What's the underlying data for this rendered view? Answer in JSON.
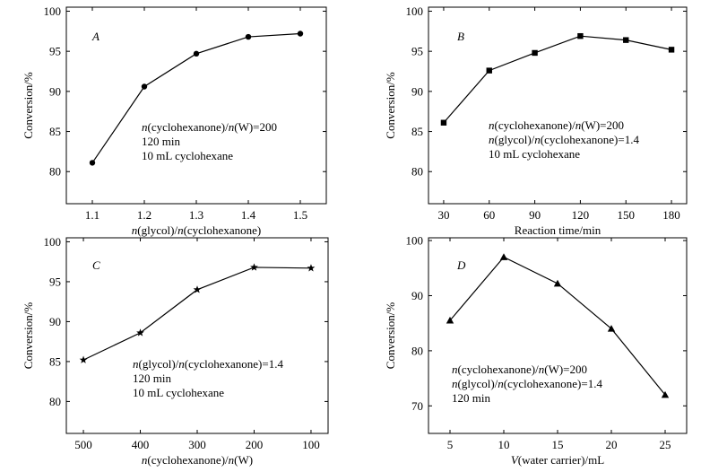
{
  "chart_data": [
    {
      "type": "line",
      "panel_label": "A",
      "marker": "circle",
      "xlabel_parts": [
        {
          "t": "n",
          "i": true
        },
        {
          "t": "(glycol)/",
          "i": false
        },
        {
          "t": "n",
          "i": true
        },
        {
          "t": "(cyclohexanone)",
          "i": false
        }
      ],
      "ylabel": "Conversion/%",
      "xlim": [
        1.05,
        1.55
      ],
      "ylim": [
        76,
        100.5
      ],
      "xticks": [
        1.1,
        1.2,
        1.3,
        1.4,
        1.5
      ],
      "xtick_labels": [
        "1.1",
        "1.2",
        "1.3",
        "1.4",
        "1.5"
      ],
      "yticks": [
        80,
        85,
        90,
        95,
        100
      ],
      "ytick_labels": [
        "80",
        "85",
        "90",
        "95",
        "100"
      ],
      "x": [
        1.1,
        1.2,
        1.3,
        1.4,
        1.5
      ],
      "y": [
        81.1,
        90.6,
        94.7,
        96.8,
        97.2
      ],
      "annotations": [
        [
          {
            "t": "n",
            "i": true
          },
          {
            "t": "(cyclohexanone)/",
            "i": false
          },
          {
            "t": "n",
            "i": true
          },
          {
            "t": "(W)=200",
            "i": false
          }
        ],
        [
          {
            "t": "120 min",
            "i": false
          }
        ],
        [
          {
            "t": "10 mL cyclohexane",
            "i": false
          }
        ]
      ]
    },
    {
      "type": "line",
      "panel_label": "B",
      "marker": "square",
      "xlabel_parts": [
        {
          "t": "Reaction time/min",
          "i": false
        }
      ],
      "ylabel": "Conversion/%",
      "xlim": [
        20,
        190
      ],
      "ylim": [
        76,
        100.5
      ],
      "xticks": [
        30,
        60,
        90,
        120,
        150,
        180
      ],
      "xtick_labels": [
        "30",
        "60",
        "90",
        "120",
        "150",
        "180"
      ],
      "yticks": [
        80,
        85,
        90,
        95,
        100
      ],
      "ytick_labels": [
        "80",
        "85",
        "90",
        "95",
        "100"
      ],
      "x": [
        30,
        60,
        90,
        120,
        150,
        180
      ],
      "y": [
        86.1,
        92.6,
        94.8,
        96.9,
        96.4,
        95.2
      ],
      "annotations": [
        [
          {
            "t": "n",
            "i": true
          },
          {
            "t": "(cyclohexanone)/",
            "i": false
          },
          {
            "t": "n",
            "i": true
          },
          {
            "t": "(W)=200",
            "i": false
          }
        ],
        [
          {
            "t": "n",
            "i": true
          },
          {
            "t": "(glycol)/",
            "i": false
          },
          {
            "t": "n",
            "i": true
          },
          {
            "t": "(cyclohexanone)=1.4",
            "i": false
          }
        ],
        [
          {
            "t": "10 mL cyclohexane",
            "i": false
          }
        ]
      ]
    },
    {
      "type": "line",
      "panel_label": "C",
      "marker": "star",
      "xlabel_parts": [
        {
          "t": "n",
          "i": true
        },
        {
          "t": "(cyclohexanone)/",
          "i": false
        },
        {
          "t": "n",
          "i": true
        },
        {
          "t": "(W)",
          "i": false
        }
      ],
      "ylabel": "Conversion/%",
      "xlim": [
        530,
        70
      ],
      "ylim": [
        76,
        100.5
      ],
      "xticks": [
        500,
        400,
        300,
        200,
        100
      ],
      "xtick_labels": [
        "500",
        "400",
        "300",
        "200",
        "100"
      ],
      "yticks": [
        80,
        85,
        90,
        95,
        100
      ],
      "ytick_labels": [
        "80",
        "85",
        "90",
        "95",
        "100"
      ],
      "x": [
        500,
        400,
        300,
        200,
        100
      ],
      "y": [
        85.2,
        88.6,
        94.0,
        96.8,
        96.7
      ],
      "annotations": [
        [
          {
            "t": "n",
            "i": true
          },
          {
            "t": "(glycol)/",
            "i": false
          },
          {
            "t": "n",
            "i": true
          },
          {
            "t": "(cyclohexanone)=1.4",
            "i": false
          }
        ],
        [
          {
            "t": "120 min",
            "i": false
          }
        ],
        [
          {
            "t": "10 mL cyclohexane",
            "i": false
          }
        ]
      ]
    },
    {
      "type": "line",
      "panel_label": "D",
      "marker": "triangle",
      "xlabel_parts": [
        {
          "t": "V",
          "i": true
        },
        {
          "t": "(water carrier)/mL",
          "i": false
        }
      ],
      "ylabel": "Conversion/%",
      "xlim": [
        3,
        27
      ],
      "ylim": [
        65,
        100.5
      ],
      "xticks": [
        5,
        10,
        15,
        20,
        25
      ],
      "xtick_labels": [
        "5",
        "10",
        "15",
        "20",
        "25"
      ],
      "yticks": [
        70,
        80,
        90,
        100
      ],
      "ytick_labels": [
        "70",
        "80",
        "90",
        "100"
      ],
      "x": [
        5,
        10,
        15,
        20,
        25
      ],
      "y": [
        85.5,
        97.0,
        92.2,
        84.0,
        72.0
      ],
      "annotations": [
        [
          {
            "t": "n",
            "i": true
          },
          {
            "t": "(cyclohexanone)/",
            "i": false
          },
          {
            "t": "n",
            "i": true
          },
          {
            "t": "(W)=200",
            "i": false
          }
        ],
        [
          {
            "t": "n",
            "i": true
          },
          {
            "t": "(glycol)/",
            "i": false
          },
          {
            "t": "n",
            "i": true
          },
          {
            "t": "(cyclohexanone)=1.4",
            "i": false
          }
        ],
        [
          {
            "t": "120 min",
            "i": false
          }
        ]
      ]
    }
  ]
}
